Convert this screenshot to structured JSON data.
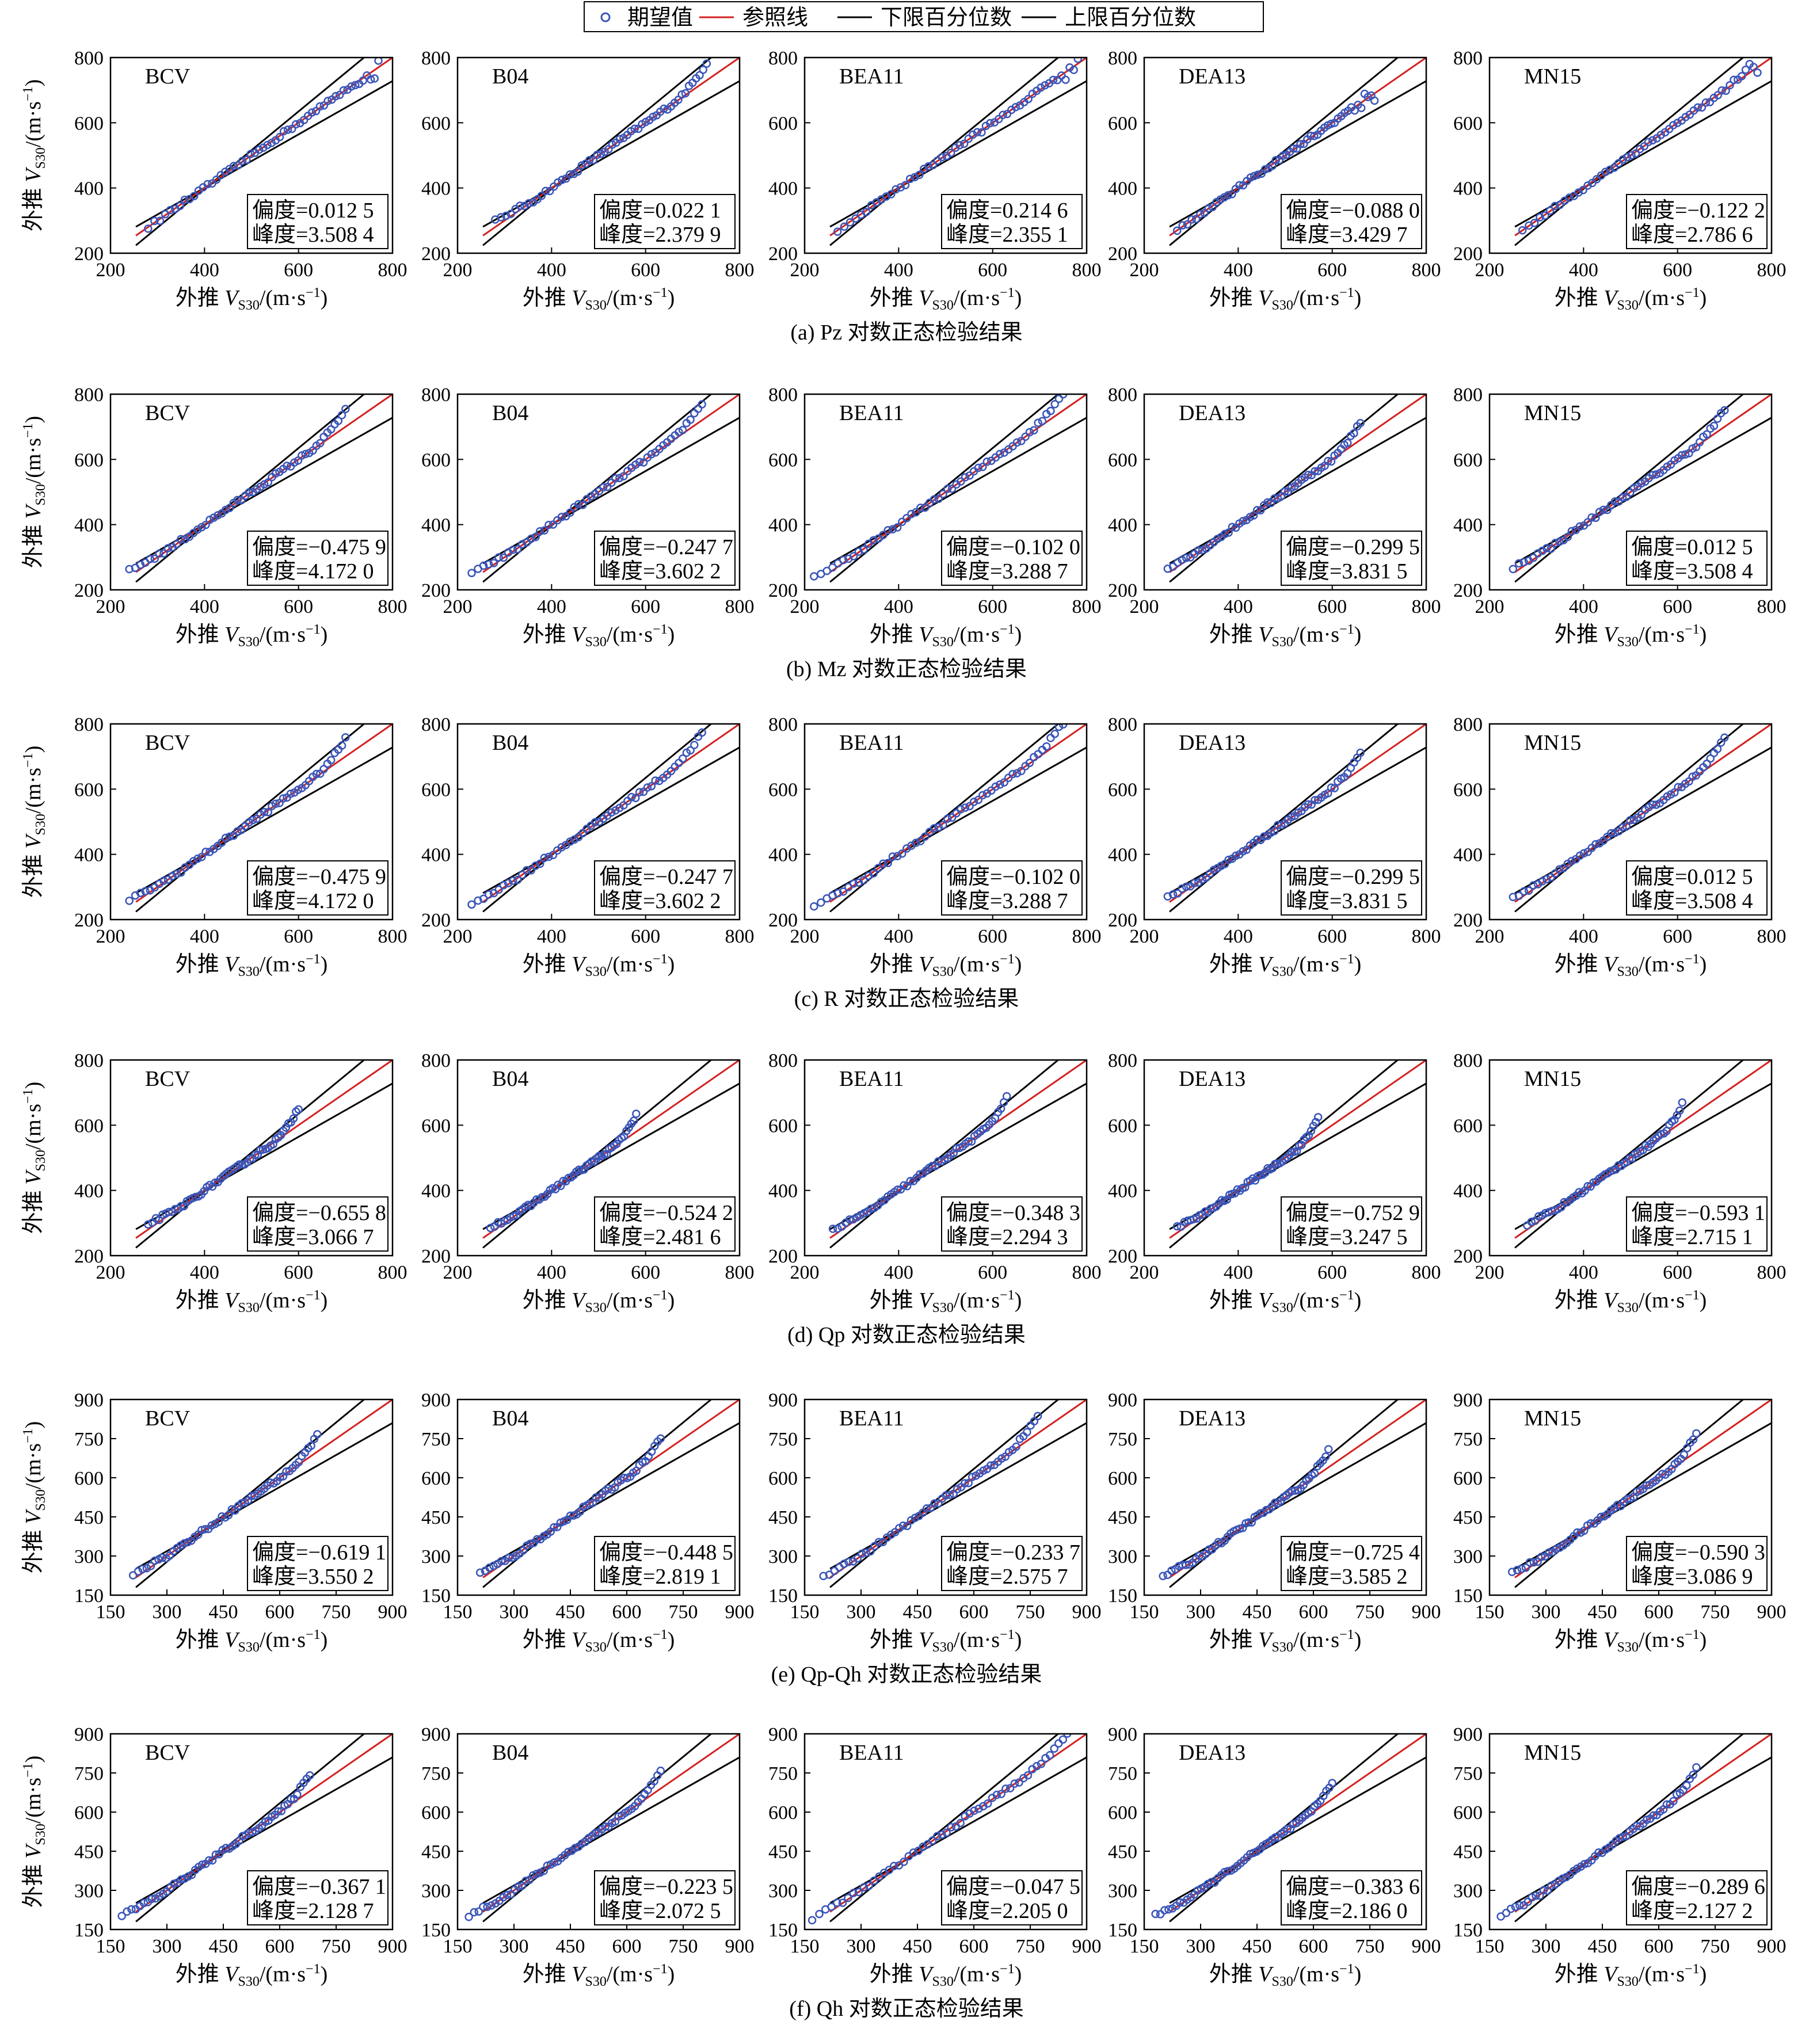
{
  "legend": {
    "expected": "期望值",
    "reference": "参照线",
    "lower": "下限百分位数",
    "upper": "上限百分位数"
  },
  "colors": {
    "expected": "#3a55b8",
    "reference": "#d42020",
    "bounds": "#000000"
  },
  "axis_label_prefix": "外推",
  "axis_label_unit": "/(m·s",
  "axis_label_exp": "−1",
  "axis_label_close": ")",
  "stat_labels": {
    "skew": "偏度=",
    "kurt": "峰度="
  },
  "chart_data": [
    {
      "type": "scatter",
      "caption": "(a) Pz 对数正态检验结果",
      "xlim": [
        200,
        800
      ],
      "ylim": [
        200,
        800
      ],
      "xticks": [
        "200",
        "400",
        "600",
        "800"
      ],
      "yticks": [
        "200",
        "400",
        "600",
        "800"
      ],
      "panels": [
        {
          "title": "BCV",
          "skew": "0.012 5",
          "kurt": "3.508 4",
          "xmin": 280,
          "xmax": 770,
          "trend": "mild"
        },
        {
          "title": "B04",
          "skew": "0.022 1",
          "kurt": "2.379 9",
          "xmin": 280,
          "xmax": 730,
          "trend": "up"
        },
        {
          "title": "BEA11",
          "skew": "0.214 6",
          "kurt": "2.355 1",
          "xmin": 270,
          "xmax": 790,
          "trend": "mild"
        },
        {
          "title": "DEA13",
          "skew": "−0.088 0",
          "kurt": "3.429 7",
          "xmin": 270,
          "xmax": 690,
          "trend": "mild"
        },
        {
          "title": "MN15",
          "skew": "−0.122 2",
          "kurt": "2.786 6",
          "xmin": 270,
          "xmax": 770,
          "trend": "mild"
        }
      ]
    },
    {
      "type": "scatter",
      "caption": "(b) Mz 对数正态检验结果",
      "xlim": [
        200,
        800
      ],
      "ylim": [
        200,
        800
      ],
      "xticks": [
        "200",
        "400",
        "600",
        "800"
      ],
      "yticks": [
        "200",
        "400",
        "600",
        "800"
      ],
      "panels": [
        {
          "title": "BCV",
          "skew": "−0.475 9",
          "kurt": "4.172 0",
          "xmin": 240,
          "xmax": 700,
          "trend": "up"
        },
        {
          "title": "B04",
          "skew": "−0.247 7",
          "kurt": "3.602 2",
          "xmin": 230,
          "xmax": 720,
          "trend": "up"
        },
        {
          "title": "BEA11",
          "skew": "−0.102 0",
          "kurt": "3.288 7",
          "xmin": 220,
          "xmax": 750,
          "trend": "up"
        },
        {
          "title": "DEA13",
          "skew": "−0.299 5",
          "kurt": "3.831 5",
          "xmin": 250,
          "xmax": 660,
          "trend": "up"
        },
        {
          "title": "MN15",
          "skew": "0.012 5",
          "kurt": "3.508 4",
          "xmin": 250,
          "xmax": 700,
          "trend": "up"
        }
      ]
    },
    {
      "type": "scatter",
      "caption": "(c) R 对数正态检验结果",
      "xlim": [
        200,
        800
      ],
      "ylim": [
        200,
        800
      ],
      "xticks": [
        "200",
        "400",
        "600",
        "800"
      ],
      "yticks": [
        "200",
        "400",
        "600",
        "800"
      ],
      "panels": [
        {
          "title": "BCV",
          "skew": "−0.475 9",
          "kurt": "4.172 0",
          "xmin": 240,
          "xmax": 700,
          "trend": "up"
        },
        {
          "title": "B04",
          "skew": "−0.247 7",
          "kurt": "3.602 2",
          "xmin": 230,
          "xmax": 720,
          "trend": "up"
        },
        {
          "title": "BEA11",
          "skew": "−0.102 0",
          "kurt": "3.288 7",
          "xmin": 220,
          "xmax": 750,
          "trend": "up"
        },
        {
          "title": "DEA13",
          "skew": "−0.299 5",
          "kurt": "3.831 5",
          "xmin": 250,
          "xmax": 660,
          "trend": "up"
        },
        {
          "title": "MN15",
          "skew": "0.012 5",
          "kurt": "3.508 4",
          "xmin": 250,
          "xmax": 700,
          "trend": "up"
        }
      ]
    },
    {
      "type": "scatter",
      "caption": "(d) Qp 对数正态检验结果",
      "xlim": [
        200,
        800
      ],
      "ylim": [
        200,
        800
      ],
      "xticks": [
        "200",
        "400",
        "600",
        "800"
      ],
      "yticks": [
        "200",
        "400",
        "600",
        "800"
      ],
      "panels": [
        {
          "title": "BCV",
          "skew": "−0.655 8",
          "kurt": "3.066 7",
          "xmin": 280,
          "xmax": 600,
          "trend": "up"
        },
        {
          "title": "B04",
          "skew": "−0.524 2",
          "kurt": "2.481 6",
          "xmin": 270,
          "xmax": 580,
          "trend": "up"
        },
        {
          "title": "BEA11",
          "skew": "−0.348 3",
          "kurt": "2.294 3",
          "xmin": 260,
          "xmax": 630,
          "trend": "up"
        },
        {
          "title": "DEA13",
          "skew": "−0.752 9",
          "kurt": "3.247 5",
          "xmin": 270,
          "xmax": 570,
          "trend": "up"
        },
        {
          "title": "MN15",
          "skew": "−0.593 1",
          "kurt": "2.715 1",
          "xmin": 280,
          "xmax": 610,
          "trend": "up"
        }
      ]
    },
    {
      "type": "scatter",
      "caption": "(e) Qp-Qh 对数正态检验结果",
      "xlim": [
        150,
        900
      ],
      "ylim": [
        150,
        900
      ],
      "xticks": [
        "150",
        "300",
        "450",
        "600",
        "750",
        "900"
      ],
      "yticks": [
        "150",
        "300",
        "450",
        "600",
        "750",
        "900"
      ],
      "panels": [
        {
          "title": "BCV",
          "skew": "−0.619 1",
          "kurt": "3.550 2",
          "xmin": 210,
          "xmax": 700,
          "trend": "up"
        },
        {
          "title": "B04",
          "skew": "−0.448 5",
          "kurt": "2.819 1",
          "xmin": 210,
          "xmax": 690,
          "trend": "up"
        },
        {
          "title": "BEA11",
          "skew": "−0.233 7",
          "kurt": "2.575 7",
          "xmin": 200,
          "xmax": 770,
          "trend": "up"
        },
        {
          "title": "DEA13",
          "skew": "−0.725 4",
          "kurt": "3.585 2",
          "xmin": 200,
          "xmax": 640,
          "trend": "up"
        },
        {
          "title": "MN15",
          "skew": "−0.590 3",
          "kurt": "3.086 9",
          "xmin": 210,
          "xmax": 700,
          "trend": "up"
        }
      ]
    },
    {
      "type": "scatter",
      "caption": "(f) Qh 对数正态检验结果",
      "xlim": [
        150,
        900
      ],
      "ylim": [
        150,
        900
      ],
      "xticks": [
        "150",
        "300",
        "450",
        "600",
        "750",
        "900"
      ],
      "yticks": [
        "150",
        "300",
        "450",
        "600",
        "750",
        "900"
      ],
      "panels": [
        {
          "title": "BCV",
          "skew": "−0.367 1",
          "kurt": "2.128 7",
          "xmin": 180,
          "xmax": 680,
          "trend": "up"
        },
        {
          "title": "B04",
          "skew": "−0.223 5",
          "kurt": "2.072 5",
          "xmin": 180,
          "xmax": 690,
          "trend": "up"
        },
        {
          "title": "BEA11",
          "skew": "−0.047 5",
          "kurt": "2.205 0",
          "xmin": 170,
          "xmax": 860,
          "trend": "up"
        },
        {
          "title": "DEA13",
          "skew": "−0.383 6",
          "kurt": "2.186 0",
          "xmin": 180,
          "xmax": 650,
          "trend": "up"
        },
        {
          "title": "MN15",
          "skew": "−0.289 6",
          "kurt": "2.127 2",
          "xmin": 180,
          "xmax": 700,
          "trend": "up"
        }
      ]
    }
  ]
}
